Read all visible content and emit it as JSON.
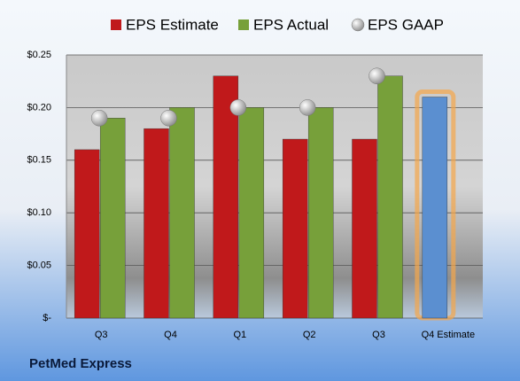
{
  "chart_data": {
    "type": "bar",
    "categories": [
      "Q3",
      "Q4",
      "Q1",
      "Q2",
      "Q3",
      "Q4 Estimate"
    ],
    "series": [
      {
        "name": "EPS Estimate",
        "color": "#c0191b",
        "values": [
          0.16,
          0.18,
          0.23,
          0.17,
          0.17,
          null
        ]
      },
      {
        "name": "EPS Actual",
        "color": "#77a03a",
        "values": [
          0.19,
          0.2,
          0.2,
          0.2,
          0.23,
          null
        ]
      },
      {
        "name": "EPS GAAP",
        "color": "#a8a8a8",
        "marker": "circle",
        "values": [
          0.19,
          0.19,
          0.2,
          0.2,
          0.23,
          null
        ]
      },
      {
        "color": "#5b8fd0",
        "highlight": "#f5a64a",
        "values": [
          null,
          null,
          null,
          null,
          null,
          0.21
        ]
      }
    ],
    "ylim": [
      0,
      0.25
    ],
    "yticks": [
      {
        "value": 0,
        "label": "$-"
      },
      {
        "value": 0.05,
        "label": "$0.05"
      },
      {
        "value": 0.1,
        "label": "$0.10"
      },
      {
        "value": 0.15,
        "label": "$0.15"
      },
      {
        "value": 0.2,
        "label": "$0.20"
      },
      {
        "value": 0.25,
        "label": "$0.25"
      }
    ],
    "grid": true,
    "legend": "top",
    "footer": "PetMed Express"
  }
}
